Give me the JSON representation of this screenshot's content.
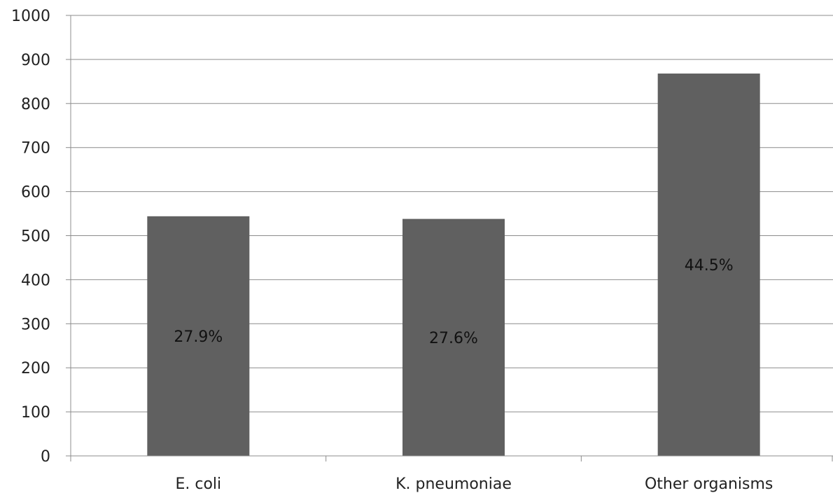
{
  "chart_data": {
    "type": "bar",
    "categories": [
      "E. coli",
      "K. pneumoniae",
      "Other organisms"
    ],
    "values": [
      544,
      538,
      868
    ],
    "data_labels": [
      "27.9%",
      "27.6%",
      "44.5%"
    ],
    "y_ticks": [
      "0",
      "100",
      "200",
      "300",
      "400",
      "500",
      "600",
      "700",
      "800",
      "900",
      "1000"
    ],
    "ylim": [
      0,
      1000
    ],
    "y_step": 100,
    "grid": true,
    "legend": "none",
    "bar_color": "#606060",
    "title": "",
    "xlabel": "",
    "ylabel": ""
  }
}
